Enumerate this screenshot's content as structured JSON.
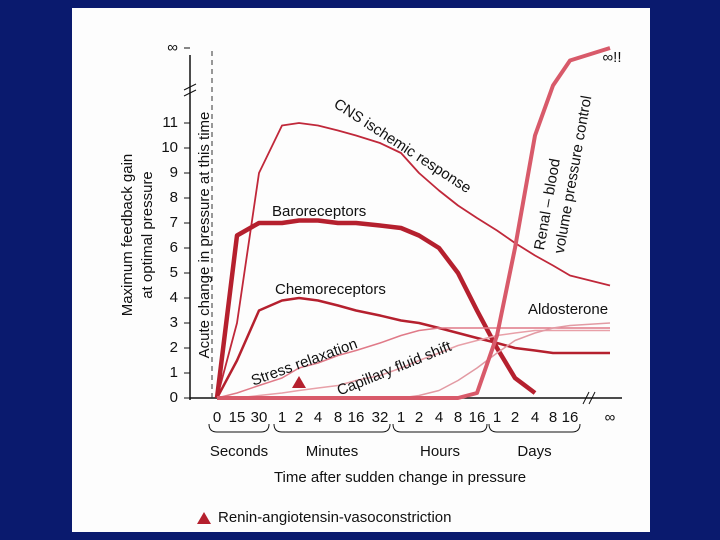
{
  "chart_data": {
    "type": "line",
    "y_label": [
      "Maximum feedback gain",
      "at optimal pressure"
    ],
    "x_label": "Time after sudden change in pressure",
    "vline_label": "Acute change in pressure at this time",
    "annotation": "∞!!",
    "categories": [
      "0",
      "15",
      "30",
      "1",
      "2",
      "4",
      "8",
      "16",
      "32",
      "1",
      "2",
      "4",
      "8",
      "16",
      "1",
      "2",
      "4",
      "8",
      "16",
      "∞"
    ],
    "x_groups": [
      {
        "label": "Seconds",
        "count": 3
      },
      {
        "label": "Minutes",
        "count": 6
      },
      {
        "label": "Hours",
        "count": 5
      },
      {
        "label": "Days",
        "count": 5
      }
    ],
    "ylim": [
      0,
      14
    ],
    "yticks": [
      0,
      1,
      2,
      3,
      4,
      5,
      6,
      7,
      8,
      9,
      10,
      11,
      {
        "value": 14,
        "label": "∞"
      }
    ],
    "series": [
      {
        "name": [
          "CNS ischemic response"
        ],
        "color": "#c0283a",
        "values": [
          0,
          3,
          9,
          10.9,
          11,
          10.9,
          10.7,
          10.5,
          10.2,
          9.8,
          9.0,
          8.3,
          7.7,
          7.2,
          6.7,
          6.2,
          5.7,
          5.3,
          4.9,
          4.5
        ]
      },
      {
        "name": [
          "Baroreceptors"
        ],
        "color": "#b5202e",
        "values": [
          0,
          6.5,
          7,
          7,
          7.1,
          7.1,
          7.0,
          7.0,
          6.9,
          6.8,
          6.5,
          6.0,
          5.0,
          3.5,
          2.0,
          0.8,
          0.2,
          null,
          null,
          null
        ]
      },
      {
        "name": [
          "Chemoreceptors"
        ],
        "color": "#b5202e",
        "values": [
          0,
          1.5,
          3.5,
          3.9,
          4,
          3.9,
          3.7,
          3.5,
          3.3,
          3.1,
          3.0,
          2.8,
          2.6,
          2.4,
          2.2,
          2.0,
          1.9,
          1.8,
          1.8,
          1.8
        ]
      },
      {
        "name": [
          "Stress relaxation"
        ],
        "color": "#e07a88",
        "values": [
          0,
          0.2,
          0.5,
          0.8,
          1.2,
          1.4,
          1.7,
          1.9,
          2.2,
          2.5,
          2.7,
          2.8,
          2.8,
          2.8,
          2.8,
          2.8,
          2.8,
          2.8,
          2.8,
          2.8
        ]
      },
      {
        "name": [
          "Capillary fluid shift"
        ],
        "color": "#e8a0a8",
        "values": [
          0,
          0,
          0.1,
          0.2,
          0.3,
          0.4,
          0.5,
          0.7,
          0.9,
          1.2,
          1.5,
          1.8,
          2.1,
          2.3,
          2.5,
          2.6,
          2.7,
          2.7,
          2.7,
          2.7
        ]
      },
      {
        "name": [
          "Aldosterone"
        ],
        "color": "#e29aa3",
        "values": [
          0,
          0,
          0,
          0,
          0,
          0,
          0,
          0,
          0,
          0,
          0.1,
          0.3,
          0.7,
          1.2,
          1.8,
          2.3,
          2.6,
          2.8,
          2.9,
          3.0
        ]
      },
      {
        "name": [
          "Renal – blood",
          "volume pressure control"
        ],
        "color": "#d85a6a",
        "values": [
          0,
          0,
          0,
          0,
          0,
          0,
          0,
          0,
          0,
          0,
          0,
          0,
          0,
          0.2,
          2.5,
          6,
          10.5,
          12.5,
          13.5,
          14
        ]
      },
      {
        "name": [
          "Renin-angiotensin-vasoconstriction"
        ],
        "color": "#b5202e",
        "marker": "triangle",
        "values": [
          null,
          null,
          null,
          null,
          0.6,
          null,
          null,
          null,
          null,
          null,
          null,
          null,
          null,
          null,
          null,
          null,
          null,
          null,
          null,
          null
        ]
      }
    ]
  }
}
